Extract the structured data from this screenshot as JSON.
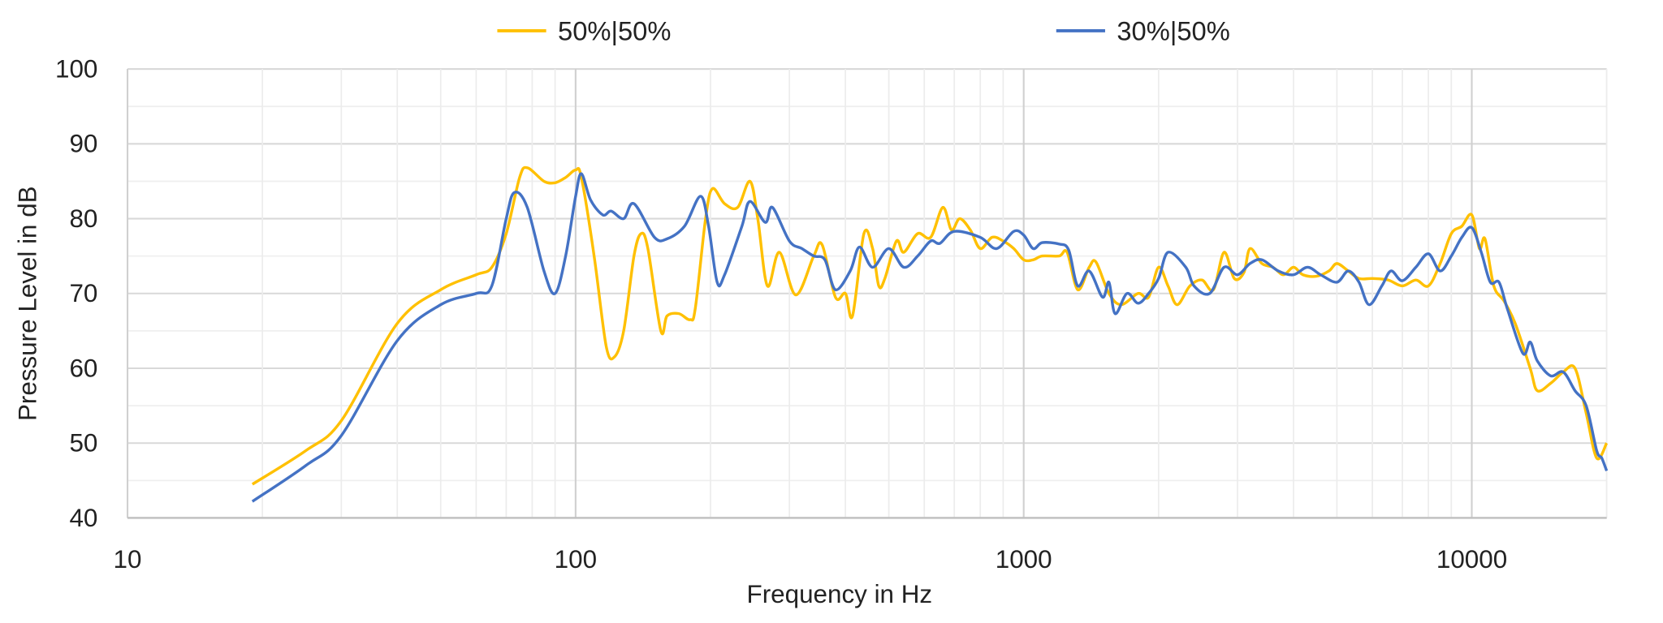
{
  "chart_data": {
    "type": "line",
    "title": "",
    "xlabel": "Frequency in Hz",
    "ylabel": "Pressure Level in dB",
    "xscale": "log",
    "xlim": [
      10,
      20000
    ],
    "ylim": [
      40,
      100
    ],
    "xticks": [
      "10",
      "100",
      "1000",
      "10000"
    ],
    "yticks": [
      "40",
      "50",
      "60",
      "70",
      "80",
      "90",
      "100"
    ],
    "grid": true,
    "legend_position": "top",
    "series": [
      {
        "name": "50%|50%",
        "color": "#FFC000",
        "points": [
          [
            19,
            44.5
          ],
          [
            25,
            49
          ],
          [
            30,
            53
          ],
          [
            40,
            66
          ],
          [
            50,
            70.5
          ],
          [
            60,
            72.5
          ],
          [
            65,
            73.5
          ],
          [
            70,
            78
          ],
          [
            75,
            85.5
          ],
          [
            78,
            86.8
          ],
          [
            85,
            85
          ],
          [
            90,
            84.8
          ],
          [
            95,
            85.5
          ],
          [
            100,
            86.5
          ],
          [
            103,
            85.5
          ],
          [
            110,
            75
          ],
          [
            117,
            63
          ],
          [
            122,
            61.5
          ],
          [
            128,
            65
          ],
          [
            135,
            75
          ],
          [
            140,
            78
          ],
          [
            145,
            76
          ],
          [
            155,
            65
          ],
          [
            160,
            67
          ],
          [
            170,
            67.3
          ],
          [
            180,
            66.5
          ],
          [
            185,
            68
          ],
          [
            195,
            80
          ],
          [
            202,
            84
          ],
          [
            215,
            82
          ],
          [
            230,
            81.5
          ],
          [
            245,
            85
          ],
          [
            255,
            80
          ],
          [
            268,
            71
          ],
          [
            285,
            75.5
          ],
          [
            310,
            69.8
          ],
          [
            340,
            75
          ],
          [
            355,
            76.5
          ],
          [
            380,
            69.5
          ],
          [
            400,
            70
          ],
          [
            415,
            67
          ],
          [
            440,
            78
          ],
          [
            460,
            76
          ],
          [
            475,
            71
          ],
          [
            490,
            72
          ],
          [
            520,
            77
          ],
          [
            540,
            75.5
          ],
          [
            580,
            78
          ],
          [
            620,
            77.5
          ],
          [
            660,
            81.5
          ],
          [
            690,
            78.5
          ],
          [
            720,
            80
          ],
          [
            760,
            78.5
          ],
          [
            800,
            76
          ],
          [
            850,
            77.5
          ],
          [
            900,
            77
          ],
          [
            950,
            76
          ],
          [
            1000,
            74.5
          ],
          [
            1050,
            74.5
          ],
          [
            1100,
            75
          ],
          [
            1200,
            75
          ],
          [
            1250,
            75.5
          ],
          [
            1320,
            70.5
          ],
          [
            1400,
            73.5
          ],
          [
            1450,
            74.2
          ],
          [
            1550,
            70
          ],
          [
            1650,
            68.5
          ],
          [
            1800,
            70
          ],
          [
            1900,
            69.5
          ],
          [
            2000,
            73.5
          ],
          [
            2100,
            71
          ],
          [
            2200,
            68.5
          ],
          [
            2350,
            71
          ],
          [
            2500,
            71.8
          ],
          [
            2650,
            70.5
          ],
          [
            2800,
            75.5
          ],
          [
            2950,
            72
          ],
          [
            3100,
            72.8
          ],
          [
            3200,
            76
          ],
          [
            3400,
            74
          ],
          [
            3600,
            73.5
          ],
          [
            3800,
            72.5
          ],
          [
            4000,
            73.5
          ],
          [
            4200,
            72.5
          ],
          [
            4500,
            72.3
          ],
          [
            4800,
            73
          ],
          [
            5000,
            74
          ],
          [
            5300,
            73
          ],
          [
            5600,
            72
          ],
          [
            6000,
            72
          ],
          [
            6500,
            71.8
          ],
          [
            7000,
            71
          ],
          [
            7500,
            71.8
          ],
          [
            8000,
            71
          ],
          [
            8500,
            74
          ],
          [
            9000,
            78
          ],
          [
            9500,
            79
          ],
          [
            10000,
            80.5
          ],
          [
            10400,
            76
          ],
          [
            10700,
            77.3
          ],
          [
            11200,
            71
          ],
          [
            11800,
            69
          ],
          [
            12500,
            66
          ],
          [
            13500,
            60
          ],
          [
            14000,
            57
          ],
          [
            15000,
            58
          ],
          [
            16000,
            59.5
          ],
          [
            17000,
            60
          ],
          [
            18000,
            54
          ],
          [
            19000,
            48
          ],
          [
            20000,
            50
          ]
        ]
      },
      {
        "name": "30%|50%",
        "color": "#4472C4",
        "points": [
          [
            19,
            42.2
          ],
          [
            25,
            47
          ],
          [
            30,
            51
          ],
          [
            40,
            63.7
          ],
          [
            50,
            68.5
          ],
          [
            60,
            70
          ],
          [
            65,
            71
          ],
          [
            70,
            80
          ],
          [
            73,
            83.5
          ],
          [
            78,
            81.5
          ],
          [
            85,
            73
          ],
          [
            90,
            70
          ],
          [
            95,
            75
          ],
          [
            100,
            83
          ],
          [
            103,
            86
          ],
          [
            108,
            82.5
          ],
          [
            115,
            80.5
          ],
          [
            120,
            81
          ],
          [
            128,
            80
          ],
          [
            135,
            82
          ],
          [
            150,
            77.5
          ],
          [
            160,
            77.3
          ],
          [
            175,
            79
          ],
          [
            190,
            83
          ],
          [
            198,
            79
          ],
          [
            207,
            71.5
          ],
          [
            215,
            72.5
          ],
          [
            235,
            79
          ],
          [
            245,
            82.3
          ],
          [
            265,
            79.5
          ],
          [
            275,
            81.5
          ],
          [
            300,
            77
          ],
          [
            320,
            76
          ],
          [
            340,
            75
          ],
          [
            360,
            74.5
          ],
          [
            380,
            70.5
          ],
          [
            410,
            73
          ],
          [
            430,
            76.2
          ],
          [
            460,
            73.5
          ],
          [
            500,
            76
          ],
          [
            540,
            73.5
          ],
          [
            580,
            75
          ],
          [
            620,
            77
          ],
          [
            650,
            76.7
          ],
          [
            700,
            78.3
          ],
          [
            800,
            77.5
          ],
          [
            870,
            76
          ],
          [
            950,
            78.3
          ],
          [
            1000,
            77.8
          ],
          [
            1050,
            76
          ],
          [
            1100,
            76.8
          ],
          [
            1200,
            76.6
          ],
          [
            1260,
            75.8
          ],
          [
            1320,
            71
          ],
          [
            1400,
            73
          ],
          [
            1500,
            69.5
          ],
          [
            1550,
            71.5
          ],
          [
            1600,
            67.3
          ],
          [
            1700,
            70
          ],
          [
            1800,
            68.7
          ],
          [
            1900,
            70
          ],
          [
            2000,
            72
          ],
          [
            2100,
            75.5
          ],
          [
            2300,
            73.5
          ],
          [
            2400,
            71
          ],
          [
            2600,
            70
          ],
          [
            2800,
            73.5
          ],
          [
            3000,
            72.5
          ],
          [
            3200,
            74
          ],
          [
            3400,
            74.5
          ],
          [
            3700,
            73
          ],
          [
            4000,
            72.5
          ],
          [
            4300,
            73.5
          ],
          [
            4600,
            72.5
          ],
          [
            5000,
            71.5
          ],
          [
            5300,
            73
          ],
          [
            5600,
            71.5
          ],
          [
            5900,
            68.5
          ],
          [
            6300,
            71
          ],
          [
            6600,
            73
          ],
          [
            7000,
            71.7
          ],
          [
            7500,
            73.5
          ],
          [
            8000,
            75.3
          ],
          [
            8500,
            73
          ],
          [
            9000,
            75
          ],
          [
            9500,
            77.5
          ],
          [
            10000,
            78.8
          ],
          [
            10500,
            75.5
          ],
          [
            11000,
            71.5
          ],
          [
            11500,
            71.5
          ],
          [
            12000,
            68
          ],
          [
            13000,
            62
          ],
          [
            13500,
            63.5
          ],
          [
            14000,
            61
          ],
          [
            15000,
            59
          ],
          [
            16000,
            59.5
          ],
          [
            17000,
            57
          ],
          [
            18000,
            55
          ],
          [
            19000,
            49
          ],
          [
            19500,
            48
          ],
          [
            20000,
            46.3
          ]
        ]
      }
    ]
  }
}
